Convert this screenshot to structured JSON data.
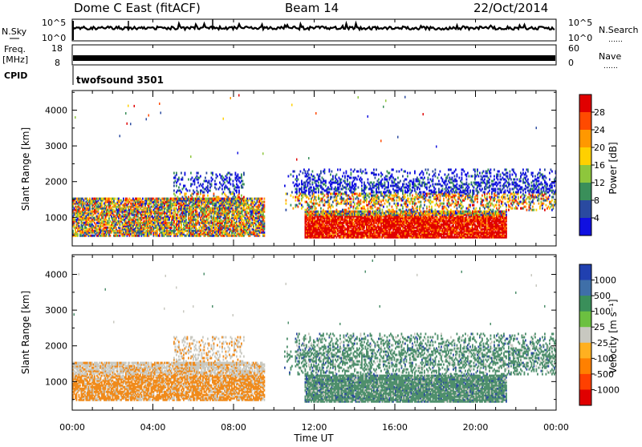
{
  "header": {
    "station": "Dome C East (fitACF)",
    "beam": "Beam 14",
    "date": "22/Oct/2014"
  },
  "top_panels": {
    "nsky_label": "N.Sky",
    "nsearch_label": "N.Search",
    "nsky_ticks": [
      "10^5",
      "10^0"
    ],
    "nsearch_ticks": [
      "10^5",
      "10^0"
    ],
    "nsearch_dots": "……",
    "freq_label_1": "Freq.",
    "freq_label_2": "[MHz]",
    "freq_ticks": [
      "18",
      "8"
    ],
    "nave_label": "Nave",
    "nave_ticks": [
      "60",
      "0"
    ],
    "nave_dots": "……",
    "cpid_label": "CPID",
    "cpid_value": "twofsound 3501"
  },
  "chart_data": [
    {
      "type": "heatmap",
      "name": "power",
      "ylabel": "Slant Range [km]",
      "y_ticks": [
        1000,
        2000,
        3000,
        4000
      ],
      "ylim": [
        200,
        4550
      ],
      "colorbar_label": "Power [dB]",
      "colorbar_ticks": [
        "28",
        "24",
        "20",
        "16",
        "12",
        "8",
        "4"
      ],
      "colorbar_colors": [
        "#e00000",
        "#ff4a00",
        "#ff9800",
        "#ffd000",
        "#8ec63c",
        "#3a8f5a",
        "#2a4aa0",
        "#1010e0"
      ]
    },
    {
      "type": "heatmap",
      "name": "velocity",
      "ylabel": "Slant Range [km]",
      "y_ticks": [
        1000,
        2000,
        3000,
        4000
      ],
      "ylim": [
        200,
        4550
      ],
      "colorbar_label": "Velocity [m s⁻¹]",
      "colorbar_ticks": [
        "1000",
        "500",
        "100",
        "25",
        "-25",
        "-100",
        "-500",
        "-1000"
      ],
      "colorbar_colors": [
        "#2040b0",
        "#3f6fa8",
        "#3a8f5a",
        "#6cc040",
        "#c8c8c0",
        "#ffb020",
        "#ff8000",
        "#ff4000",
        "#e00000"
      ]
    }
  ],
  "x_axis": {
    "ticks": [
      "00:00",
      "04:00",
      "08:00",
      "12:00",
      "16:00",
      "20:00",
      "00:00"
    ],
    "label": "Time UT"
  },
  "colors": {
    "power_red": "#f00000",
    "power_green": "#3aa050",
    "power_blue": "#2a4aa0",
    "vel_green": "#4e8f6c",
    "vel_orange": "#f08a1a",
    "vel_grey": "#c8c8c0"
  }
}
